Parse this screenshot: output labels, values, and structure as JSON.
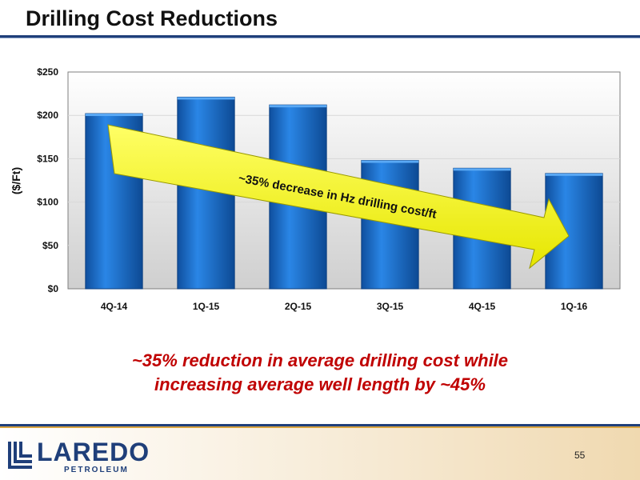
{
  "slide": {
    "title": "Drilling Cost Reductions",
    "callout_line1": "~35% reduction in average drilling cost while",
    "callout_line2": "increasing average well length by ~45%",
    "page_number": "55"
  },
  "logo": {
    "name": "LAREDO",
    "sub": "PETROLEUM",
    "color": "#1f3f7a"
  },
  "colors": {
    "bar": "#1a6fd0",
    "arrow": "#ffff00",
    "callout": "#c00000",
    "rule": "#1f3f7a"
  },
  "chart_data": {
    "type": "bar",
    "categories": [
      "4Q-14",
      "1Q-15",
      "2Q-15",
      "3Q-15",
      "4Q-15",
      "1Q-16"
    ],
    "values": [
      202,
      221,
      212,
      148,
      139,
      133
    ],
    "ylabel": "($/Ft)",
    "ylim": [
      0,
      250
    ],
    "yticks": [
      0,
      50,
      100,
      150,
      200,
      250
    ],
    "ytick_labels": [
      "$0",
      "$50",
      "$100",
      "$150",
      "$200",
      "$250"
    ],
    "grid": true,
    "annotation": "~35% decrease in Hz drilling cost/ft"
  }
}
